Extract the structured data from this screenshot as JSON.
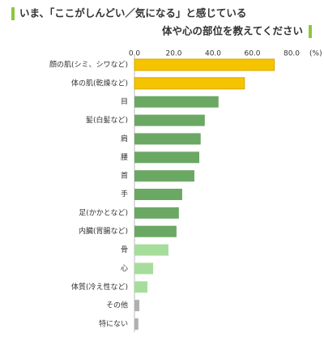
{
  "chart_data": {
    "type": "hbar",
    "title_lines": [
      "いま、「ここがしんどい／気になる」と感じている",
      "体や心の部位を教えてください"
    ],
    "unit": "(%)",
    "categories": [
      "顔の肌(シミ、シワなど)",
      "体の肌(乾燥など)",
      "目",
      "髪(白髪など)",
      "肩",
      "腰",
      "首",
      "手",
      "足(かかとなど)",
      "内臓(胃腸など)",
      "骨",
      "心",
      "体質(冷え性など)",
      "その他",
      "特にない"
    ],
    "values": [
      71.2,
      56,
      42.8,
      35.8,
      33.7,
      33,
      30.5,
      24.3,
      22.6,
      21.4,
      17.3,
      9.5,
      6.6,
      2.5,
      2
    ],
    "colors": [
      "#f5c400",
      "#f5c400",
      "#6aa864",
      "#6aa864",
      "#6aa864",
      "#6aa864",
      "#6aa864",
      "#6aa864",
      "#6aa864",
      "#6aa864",
      "#a6dd9c",
      "#a6dd9c",
      "#a6dd9c",
      "#b0b0b0",
      "#b0b0b0"
    ],
    "xlim": [
      0,
      80
    ],
    "xticks": [
      {
        "value": 0,
        "label": "0.0"
      },
      {
        "value": 20,
        "label": "20.0"
      },
      {
        "value": 40,
        "label": "40.0"
      },
      {
        "value": 60,
        "label": "60.0"
      },
      {
        "value": 80,
        "label": "80.0"
      }
    ]
  }
}
